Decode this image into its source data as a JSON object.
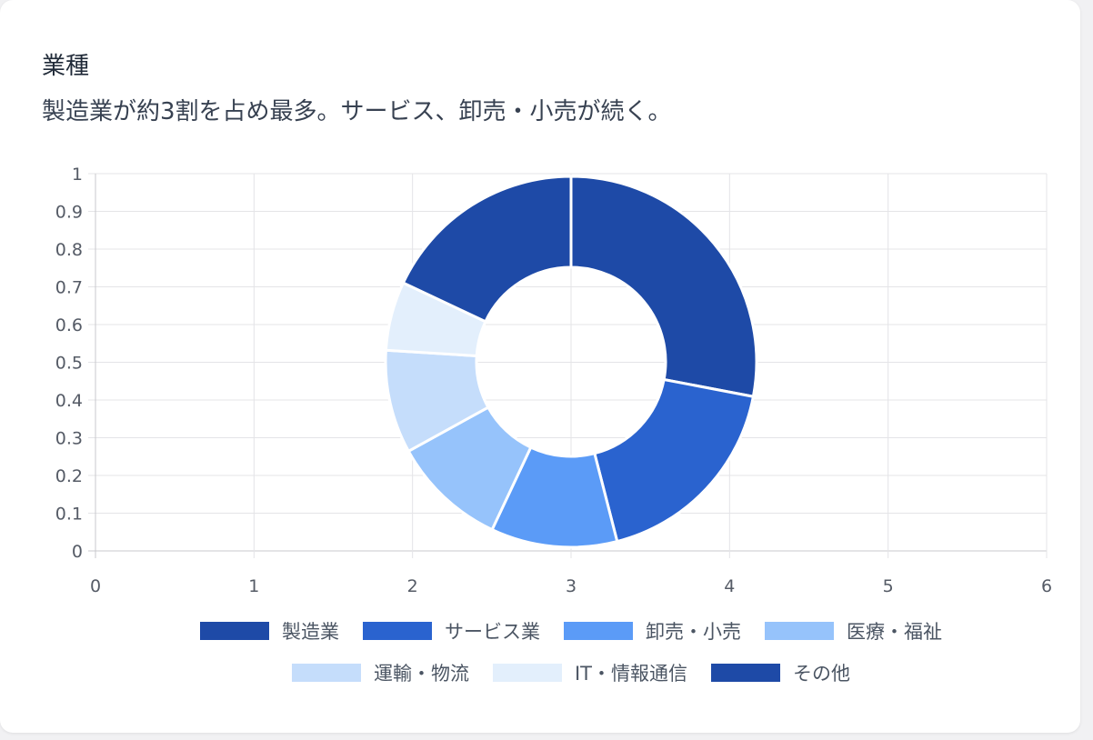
{
  "card": {
    "title": "業種",
    "subtitle": "製造業が約3割を占め最多。サービス、卸売・小売が続く。"
  },
  "chart_data": {
    "type": "pie",
    "variant": "doughnut",
    "labels": [
      "製造業",
      "サービス業",
      "卸売・小売",
      "医療・福祉",
      "運輸・物流",
      "IT・情報通信",
      "その他"
    ],
    "values": [
      28,
      18,
      11,
      10,
      9,
      6,
      18
    ],
    "colors": [
      "#1e4aa7",
      "#2a63cf",
      "#5b9bf7",
      "#96c3fb",
      "#c5ddfb",
      "#e3effc",
      "#1e4aa7"
    ],
    "x_axis": {
      "ticks": [
        "0",
        "1",
        "2",
        "3",
        "4",
        "5",
        "6"
      ],
      "range": [
        0,
        6
      ]
    },
    "y_axis": {
      "ticks": [
        "0",
        "0.1",
        "0.2",
        "0.3",
        "0.4",
        "0.5",
        "0.6",
        "0.7",
        "0.8",
        "0.9",
        "1"
      ],
      "range": [
        0,
        1
      ]
    },
    "grid": true,
    "legend_position": "bottom"
  }
}
